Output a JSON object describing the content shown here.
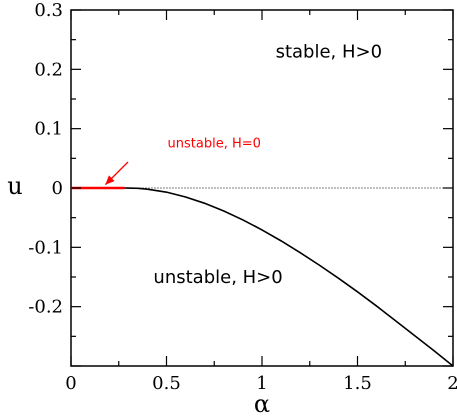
{
  "chart_data": {
    "type": "line",
    "xlabel": "α",
    "ylabel": "u",
    "xlim": [
      0,
      2
    ],
    "ylim": [
      -0.3,
      0.3
    ],
    "x_ticks": [
      0,
      0.5,
      1,
      1.5,
      2
    ],
    "x_tick_labels": [
      "0",
      "0.5",
      "1",
      "1.5",
      "2"
    ],
    "y_ticks": [
      0.3,
      0.2,
      0.1,
      0,
      -0.1,
      -0.2
    ],
    "y_tick_labels": [
      "0.3",
      "0.2",
      "0.1",
      "0",
      "-0.1",
      "-0.2"
    ],
    "grid": false,
    "series": [
      {
        "style": "solid",
        "color": "#000000",
        "x": [
          0.28,
          0.35,
          0.4,
          0.5,
          0.6,
          0.7,
          0.8,
          0.9,
          1.0,
          1.1,
          1.2,
          1.3,
          1.4,
          1.5,
          1.6,
          1.7,
          1.8,
          1.9,
          2.0
        ],
        "y": [
          0,
          -0.0006,
          -0.002,
          -0.007,
          -0.0152,
          -0.0258,
          -0.0388,
          -0.0538,
          -0.0706,
          -0.0891,
          -0.109,
          -0.13,
          -0.152,
          -0.175,
          -0.199,
          -0.224,
          -0.249,
          -0.274,
          -0.3
        ]
      },
      {
        "style": "solid",
        "color": "#ff0000",
        "x": [
          0,
          0.28
        ],
        "y": [
          0,
          0
        ]
      },
      {
        "style": "dotted",
        "color": "#000000",
        "x": [
          0.28,
          2.0
        ],
        "y": [
          0,
          0
        ]
      }
    ],
    "annotations": {
      "stable": {
        "text": "stable, H>0",
        "x": 1.35,
        "y": 0.22
      },
      "unstable_bottom": {
        "text": "unstable, H>0",
        "x": 0.77,
        "y": -0.16
      },
      "unstable_red": {
        "text": "unstable, H=0",
        "x": 0.75,
        "y": 0.068,
        "color": "#ff0000",
        "arrow_to": {
          "x": 0.18,
          "y": 0.004
        }
      }
    }
  }
}
